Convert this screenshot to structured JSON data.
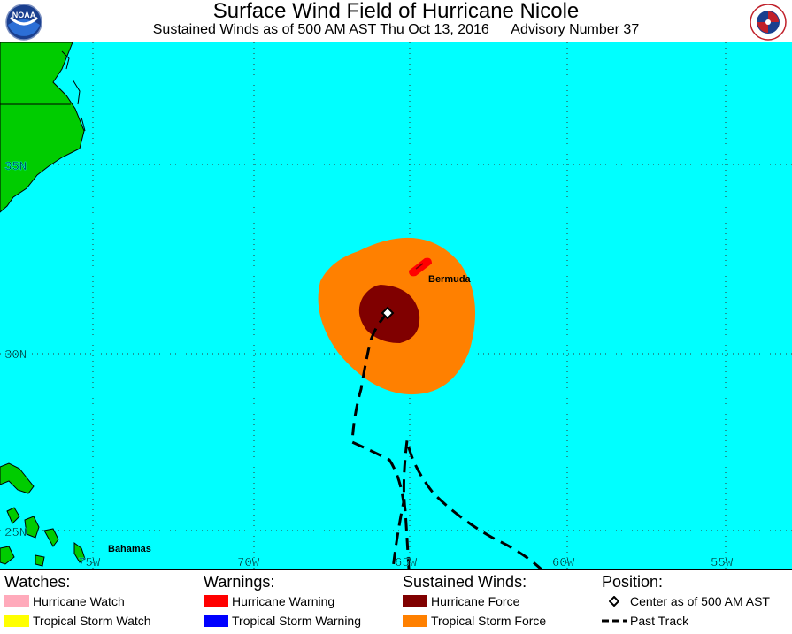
{
  "header": {
    "title": "Surface Wind Field of Hurricane Nicole",
    "subtitle_time": "Sustained Winds as of 500 AM AST Thu Oct 13, 2016",
    "subtitle_advisory": "Advisory Number 37"
  },
  "logos": {
    "left": "NOAA",
    "right": "NATIONAL WEATHER SERVICE"
  },
  "map": {
    "colors": {
      "ocean": "#00ffff",
      "land": "#00cc00",
      "tropical_storm_force": "#ff8000",
      "hurricane_force": "#800000",
      "hurricane_warning": "#ff0000"
    },
    "lat_labels": [
      "35N",
      "30N",
      "25N"
    ],
    "lon_labels": [
      "75W",
      "70W",
      "65W",
      "60W",
      "55W"
    ],
    "places": {
      "bermuda": "Bermuda",
      "bahamas": "Bahamas"
    },
    "storm_center": {
      "lat": 31.2,
      "lon": 64.9
    }
  },
  "legend": {
    "watches": {
      "heading": "Watches:",
      "items": [
        {
          "label": "Hurricane Watch",
          "color": "#ffaabb"
        },
        {
          "label": "Tropical Storm Watch",
          "color": "#ffff00"
        }
      ]
    },
    "warnings": {
      "heading": "Warnings:",
      "items": [
        {
          "label": "Hurricane Warning",
          "color": "#ff0000"
        },
        {
          "label": "Tropical Storm Warning",
          "color": "#0000ff"
        }
      ]
    },
    "winds": {
      "heading": "Sustained Winds:",
      "items": [
        {
          "label": "Hurricane Force",
          "color": "#800000"
        },
        {
          "label": "Tropical Storm Force",
          "color": "#ff8000"
        }
      ]
    },
    "position": {
      "heading": "Position:",
      "items": [
        {
          "label": "Center as of 500 AM AST",
          "icon": "diamond-icon"
        },
        {
          "label": "Past Track",
          "icon": "dashed-line-icon"
        }
      ]
    }
  }
}
